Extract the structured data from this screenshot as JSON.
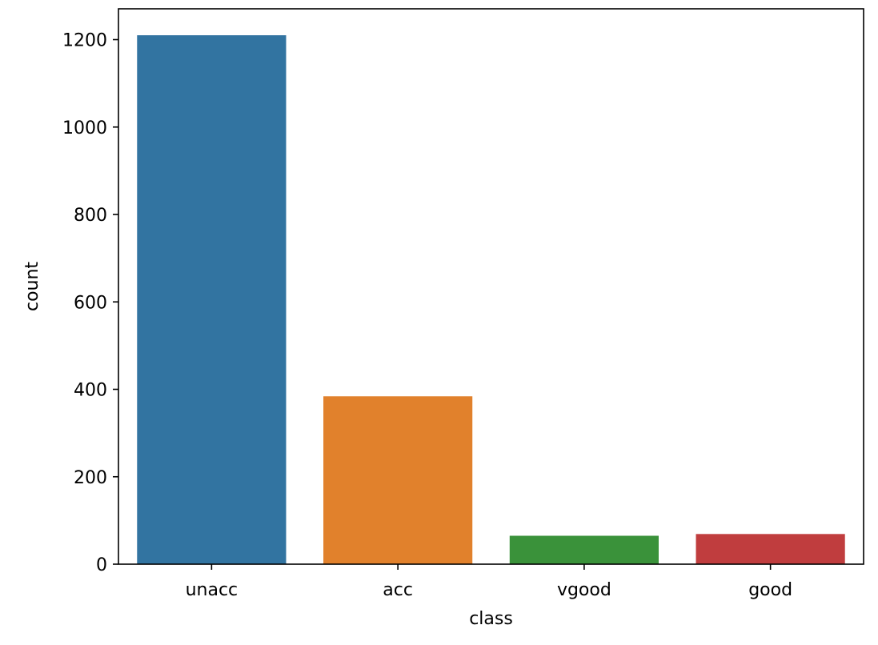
{
  "chart_data": {
    "type": "bar",
    "categories": [
      "unacc",
      "acc",
      "vgood",
      "good"
    ],
    "values": [
      1210,
      384,
      65,
      69
    ],
    "colors": [
      "#3274a1",
      "#e1812c",
      "#3a923a",
      "#c03d3e"
    ],
    "title": "",
    "xlabel": "class",
    "ylabel": "count",
    "ylim": [
      0,
      1270.5
    ],
    "yticks": [
      0,
      200,
      400,
      600,
      800,
      1000,
      1200
    ],
    "grid": false,
    "legend": "none"
  }
}
